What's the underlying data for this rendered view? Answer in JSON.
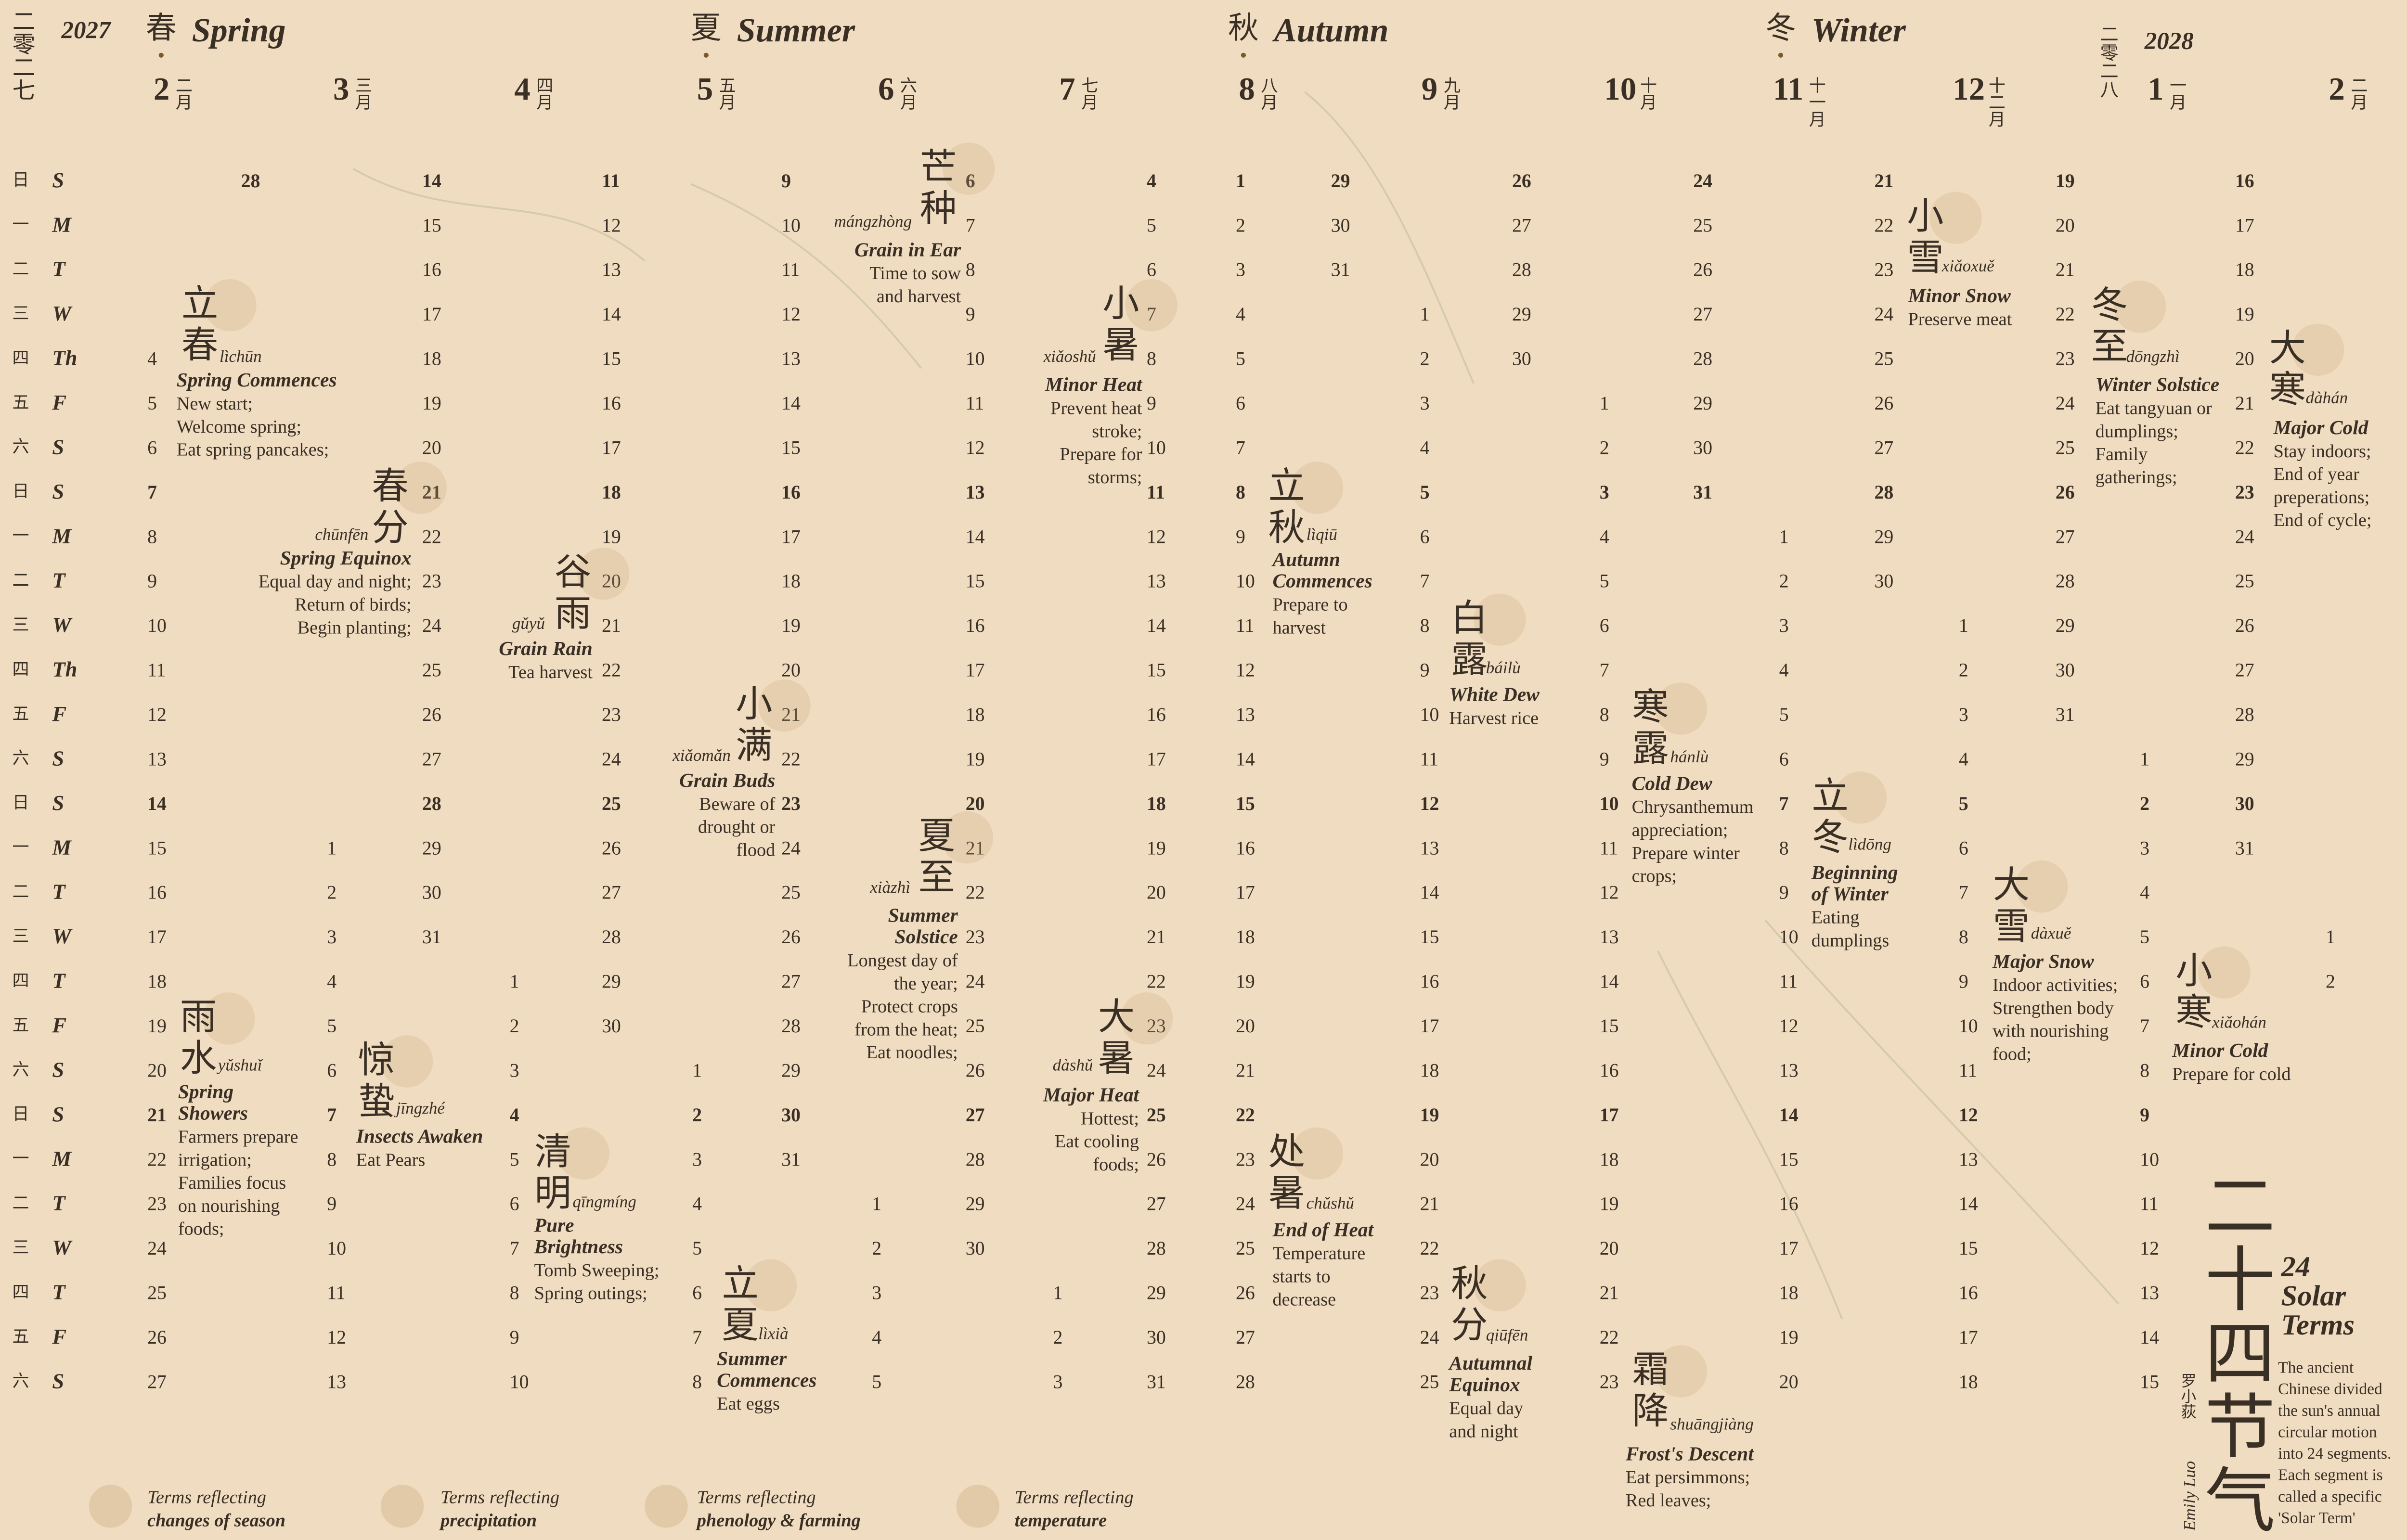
{
  "header": {
    "year_start_cn": "二零二七",
    "year_start": "2027",
    "year_end_cn": "二零二八",
    "year_end": "2028"
  },
  "seasons": [
    {
      "cn": "春",
      "en": "Spring"
    },
    {
      "cn": "夏",
      "en": "Summer"
    },
    {
      "cn": "秋",
      "en": "Autumn"
    },
    {
      "cn": "冬",
      "en": "Winter"
    }
  ],
  "months": [
    {
      "number": 2,
      "cn": "二月"
    },
    {
      "number": 3,
      "cn": "三月"
    },
    {
      "number": 4,
      "cn": "四月"
    },
    {
      "number": 5,
      "cn": "五月"
    },
    {
      "number": 6,
      "cn": "六月"
    },
    {
      "number": 7,
      "cn": "七月"
    },
    {
      "number": 8,
      "cn": "八月"
    },
    {
      "number": 9,
      "cn": "九月"
    },
    {
      "number": 10,
      "cn": "十月"
    },
    {
      "number": 11,
      "cn": "十一月"
    },
    {
      "number": 12,
      "cn": "十二月"
    },
    {
      "number": 1,
      "cn": "一月"
    },
    {
      "number": 2,
      "cn": "二月"
    }
  ],
  "weekdays": [
    {
      "cn": "日",
      "en": "S"
    },
    {
      "cn": "一",
      "en": "M"
    },
    {
      "cn": "二",
      "en": "T"
    },
    {
      "cn": "三",
      "en": "W"
    },
    {
      "cn": "四",
      "en": "Th"
    },
    {
      "cn": "五",
      "en": "F"
    },
    {
      "cn": "六",
      "en": "S"
    },
    {
      "cn": "日",
      "en": "S"
    },
    {
      "cn": "一",
      "en": "M"
    },
    {
      "cn": "二",
      "en": "T"
    },
    {
      "cn": "三",
      "en": "W"
    },
    {
      "cn": "四",
      "en": "Th"
    },
    {
      "cn": "五",
      "en": "F"
    },
    {
      "cn": "六",
      "en": "S"
    },
    {
      "cn": "日",
      "en": "S"
    },
    {
      "cn": "一",
      "en": "M"
    },
    {
      "cn": "二",
      "en": "T"
    },
    {
      "cn": "三",
      "en": "W"
    },
    {
      "cn": "四",
      "en": "T"
    },
    {
      "cn": "五",
      "en": "F"
    },
    {
      "cn": "六",
      "en": "S"
    },
    {
      "cn": "日",
      "en": "S"
    },
    {
      "cn": "一",
      "en": "M"
    },
    {
      "cn": "二",
      "en": "T"
    },
    {
      "cn": "三",
      "en": "W"
    },
    {
      "cn": "四",
      "en": "T"
    },
    {
      "cn": "五",
      "en": "F"
    },
    {
      "cn": "六",
      "en": "S"
    }
  ],
  "day_columns": [
    [
      null,
      null,
      null,
      null,
      4,
      5,
      6,
      7,
      8,
      9,
      10,
      11,
      12,
      13,
      14,
      15,
      16,
      17,
      18,
      19,
      20,
      21,
      22,
      23,
      24,
      25,
      26,
      27
    ],
    [
      28,
      null,
      null,
      null,
      null,
      null,
      null,
      null,
      null,
      null,
      null,
      null,
      null,
      null,
      null,
      null,
      null,
      null,
      null,
      null,
      null,
      null,
      null,
      null,
      null,
      null,
      null,
      null
    ],
    [
      null,
      null,
      null,
      null,
      null,
      null,
      null,
      null,
      null,
      null,
      null,
      null,
      null,
      null,
      null,
      1,
      2,
      3,
      4,
      5,
      6,
      7,
      8,
      9,
      10,
      11,
      12,
      13
    ],
    [
      14,
      15,
      16,
      17,
      18,
      19,
      20,
      21,
      22,
      23,
      24,
      25,
      26,
      27,
      28,
      29,
      30,
      31,
      null,
      null,
      null,
      null,
      null,
      null,
      null,
      null,
      null,
      null
    ],
    [
      null,
      null,
      null,
      null,
      null,
      null,
      null,
      null,
      null,
      null,
      null,
      null,
      null,
      null,
      null,
      null,
      null,
      null,
      1,
      2,
      3,
      4,
      5,
      6,
      7,
      8,
      9,
      10
    ],
    [
      11,
      12,
      13,
      14,
      15,
      16,
      17,
      18,
      19,
      20,
      21,
      22,
      23,
      24,
      25,
      26,
      27,
      28,
      29,
      30,
      null,
      null,
      null,
      null,
      null,
      null,
      null,
      null
    ],
    [
      null,
      null,
      null,
      null,
      null,
      null,
      null,
      null,
      null,
      null,
      null,
      null,
      null,
      null,
      null,
      null,
      null,
      null,
      null,
      null,
      1,
      2,
      3,
      4,
      5,
      6,
      7,
      8
    ],
    [
      9,
      10,
      11,
      12,
      13,
      14,
      15,
      16,
      17,
      18,
      19,
      20,
      21,
      22,
      23,
      24,
      25,
      26,
      27,
      28,
      29,
      30,
      31,
      null,
      null,
      null,
      null,
      null
    ],
    [
      null,
      null,
      null,
      null,
      null,
      null,
      null,
      null,
      null,
      null,
      null,
      null,
      null,
      null,
      null,
      null,
      null,
      null,
      null,
      null,
      null,
      null,
      null,
      1,
      2,
      3,
      4,
      5
    ],
    [
      6,
      7,
      8,
      9,
      10,
      11,
      12,
      13,
      14,
      15,
      16,
      17,
      18,
      19,
      20,
      21,
      22,
      23,
      24,
      25,
      26,
      27,
      28,
      29,
      30,
      null,
      null,
      null
    ],
    [
      null,
      null,
      null,
      null,
      null,
      null,
      null,
      null,
      null,
      null,
      null,
      null,
      null,
      null,
      null,
      null,
      null,
      null,
      null,
      null,
      null,
      null,
      null,
      null,
      null,
      1,
      2,
      3
    ],
    [
      4,
      5,
      6,
      7,
      8,
      9,
      10,
      11,
      12,
      13,
      14,
      15,
      16,
      17,
      18,
      19,
      20,
      21,
      22,
      23,
      24,
      25,
      26,
      27,
      28,
      29,
      30,
      31
    ],
    [
      1,
      2,
      3,
      4,
      5,
      6,
      7,
      8,
      9,
      10,
      11,
      12,
      13,
      14,
      15,
      16,
      17,
      18,
      19,
      20,
      21,
      22,
      23,
      24,
      25,
      26,
      27,
      28
    ],
    [
      29,
      30,
      31,
      null,
      null,
      null,
      null,
      null,
      null,
      null,
      null,
      null,
      null,
      null,
      null,
      null,
      null,
      null,
      null,
      null,
      null,
      null,
      null,
      null,
      null,
      null,
      null,
      null
    ],
    [
      null,
      null,
      null,
      1,
      2,
      3,
      4,
      5,
      6,
      7,
      8,
      9,
      10,
      11,
      12,
      13,
      14,
      15,
      16,
      17,
      18,
      19,
      20,
      21,
      22,
      23,
      24,
      25
    ],
    [
      26,
      27,
      28,
      29,
      30,
      null,
      null,
      null,
      null,
      null,
      null,
      null,
      null,
      null,
      null,
      null,
      null,
      null,
      null,
      null,
      null,
      null,
      null,
      null,
      null,
      null,
      null,
      null
    ],
    [
      null,
      null,
      null,
      null,
      null,
      1,
      2,
      3,
      4,
      5,
      6,
      7,
      8,
      9,
      10,
      11,
      12,
      13,
      14,
      15,
      16,
      17,
      18,
      19,
      20,
      21,
      22,
      23
    ],
    [
      24,
      25,
      26,
      27,
      28,
      29,
      30,
      31,
      null,
      null,
      null,
      null,
      null,
      null,
      null,
      null,
      null,
      null,
      null,
      null,
      null,
      null,
      null,
      null,
      null,
      null,
      null,
      null
    ],
    [
      null,
      null,
      null,
      null,
      null,
      null,
      null,
      null,
      1,
      2,
      3,
      4,
      5,
      6,
      7,
      8,
      9,
      10,
      11,
      12,
      13,
      14,
      15,
      16,
      17,
      18,
      19,
      20
    ],
    [
      21,
      22,
      23,
      24,
      25,
      26,
      27,
      28,
      29,
      30,
      null,
      null,
      null,
      null,
      null,
      null,
      null,
      null,
      null,
      null,
      null,
      null,
      null,
      null,
      null,
      null,
      null,
      null
    ],
    [
      null,
      null,
      null,
      null,
      null,
      null,
      null,
      null,
      null,
      null,
      1,
      2,
      3,
      4,
      5,
      6,
      7,
      8,
      9,
      10,
      11,
      12,
      13,
      14,
      15,
      16,
      17,
      18
    ],
    [
      19,
      20,
      21,
      22,
      23,
      24,
      25,
      26,
      27,
      28,
      29,
      30,
      31,
      null,
      null,
      null,
      null,
      null,
      null,
      null,
      null,
      null,
      null,
      null,
      null,
      null,
      null,
      null
    ],
    [
      null,
      null,
      null,
      null,
      null,
      null,
      null,
      null,
      null,
      null,
      null,
      null,
      null,
      1,
      2,
      3,
      4,
      5,
      6,
      7,
      8,
      9,
      10,
      11,
      12,
      13,
      14,
      15
    ],
    [
      16,
      17,
      18,
      19,
      20,
      21,
      22,
      23,
      24,
      25,
      26,
      27,
      28,
      29,
      30,
      31,
      null,
      null,
      null,
      null,
      null,
      null,
      null,
      null,
      null,
      null,
      null,
      null
    ],
    [
      null,
      null,
      null,
      null,
      null,
      null,
      null,
      null,
      null,
      null,
      null,
      null,
      null,
      null,
      null,
      null,
      null,
      1,
      2,
      null,
      null,
      null,
      null,
      null,
      null,
      null,
      null,
      null
    ]
  ],
  "solar_terms": [
    {
      "cn": "立春",
      "pinyin": "lìchūn",
      "name": [
        "Spring Commences"
      ],
      "notes": [
        "New start;",
        "Welcome spring;",
        "Eat spring pancakes;"
      ]
    },
    {
      "cn": "雨水",
      "pinyin": "yǔshuǐ",
      "name": [
        "Spring",
        "Showers"
      ],
      "notes": [
        "Farmers prepare",
        "irrigation;",
        "Families focus",
        "on nourishing",
        "foods;"
      ]
    },
    {
      "cn": "惊蛰",
      "pinyin": "jīngzhé",
      "name": [
        "Insects Awaken"
      ],
      "notes": [
        "Eat Pears"
      ]
    },
    {
      "cn": "春分",
      "pinyin": "chūnfēn",
      "name": [
        "Spring Equinox"
      ],
      "notes": [
        "Equal day and night;",
        "Return of birds;",
        "Begin planting;"
      ]
    },
    {
      "cn": "清明",
      "pinyin": "qīngmíng",
      "name": [
        "Pure",
        "Brightness"
      ],
      "notes": [
        "Tomb Sweeping;",
        "Spring outings;"
      ]
    },
    {
      "cn": "谷雨",
      "pinyin": "gǔyǔ",
      "name": [
        "Grain Rain"
      ],
      "notes": [
        "Tea harvest"
      ]
    },
    {
      "cn": "立夏",
      "pinyin": "lìxià",
      "name": [
        "Summer",
        "Commences"
      ],
      "notes": [
        "Eat eggs"
      ]
    },
    {
      "cn": "小满",
      "pinyin": "xiǎomǎn",
      "name": [
        "Grain Buds"
      ],
      "notes": [
        "Beware of",
        "drought or",
        "flood"
      ]
    },
    {
      "cn": "芒种",
      "pinyin": "mángzhòng",
      "name": [
        "Grain in Ear"
      ],
      "notes": [
        "Time to sow",
        "and harvest"
      ]
    },
    {
      "cn": "夏至",
      "pinyin": "xiàzhì",
      "name": [
        "Summer",
        "Solstice"
      ],
      "notes": [
        "Longest day of",
        "the year;",
        "Protect crops",
        "from the heat;",
        "Eat noodles;"
      ]
    },
    {
      "cn": "小暑",
      "pinyin": "xiǎoshǔ",
      "name": [
        "Minor Heat"
      ],
      "notes": [
        "Prevent heat",
        "stroke;",
        "Prepare for",
        "storms;"
      ]
    },
    {
      "cn": "大暑",
      "pinyin": "dàshǔ",
      "name": [
        "Major Heat"
      ],
      "notes": [
        "Hottest;",
        "Eat cooling",
        "foods;"
      ]
    },
    {
      "cn": "立秋",
      "pinyin": "lìqiū",
      "name": [
        "Autumn",
        "Commences"
      ],
      "notes": [
        "Prepare to",
        "harvest"
      ]
    },
    {
      "cn": "处暑",
      "pinyin": "chǔshǔ",
      "name": [
        "End of Heat"
      ],
      "notes": [
        "Temperature",
        "starts to",
        "decrease"
      ]
    },
    {
      "cn": "白露",
      "pinyin": "báilù",
      "name": [
        "White Dew"
      ],
      "notes": [
        "Harvest rice"
      ]
    },
    {
      "cn": "秋分",
      "pinyin": "qiūfēn",
      "name": [
        "Autumnal",
        "Equinox"
      ],
      "notes": [
        "Equal day",
        "and night"
      ]
    },
    {
      "cn": "寒露",
      "pinyin": "hánlù",
      "name": [
        "Cold Dew"
      ],
      "notes": [
        "Chrysanthemum",
        "appreciation;",
        "Prepare winter",
        "crops;"
      ]
    },
    {
      "cn": "霜降",
      "pinyin": "shuāngjiàng",
      "name": [
        "Frost's Descent"
      ],
      "notes": [
        "Eat persimmons;",
        "Red leaves;"
      ]
    },
    {
      "cn": "立冬",
      "pinyin": "lìdōng",
      "name": [
        "Beginning",
        "of Winter"
      ],
      "notes": [
        "Eating",
        "dumplings"
      ]
    },
    {
      "cn": "小雪",
      "pinyin": "xiǎoxuě",
      "name": [
        "Minor Snow"
      ],
      "notes": [
        "Preserve meat"
      ]
    },
    {
      "cn": "大雪",
      "pinyin": "dàxuě",
      "name": [
        "Major Snow"
      ],
      "notes": [
        "Indoor activities;",
        "Strengthen body",
        "with nourishing",
        "food;"
      ]
    },
    {
      "cn": "冬至",
      "pinyin": "dōngzhì",
      "name": [
        "Winter Solstice"
      ],
      "notes": [
        "Eat tangyuan or",
        "dumplings;",
        "Family",
        "gatherings;"
      ]
    },
    {
      "cn": "小寒",
      "pinyin": "xiǎohán",
      "name": [
        "Minor Cold"
      ],
      "notes": [
        "Prepare for cold"
      ]
    },
    {
      "cn": "大寒",
      "pinyin": "dàhán",
      "name": [
        "Major Cold"
      ],
      "notes": [
        "Stay indoors;",
        "End of year",
        "preperations;",
        "End of cycle;"
      ]
    }
  ],
  "legend": [
    {
      "text": "Terms reflecting",
      "category": "changes of season"
    },
    {
      "text": "Terms reflecting",
      "category": "precipitation"
    },
    {
      "text": "Terms reflecting",
      "category": "phenology & farming"
    },
    {
      "text": "Terms reflecting",
      "category": "temperature"
    }
  ],
  "title": {
    "cn": "二十四节气",
    "en": [
      "24",
      "Solar",
      "Terms"
    ],
    "description": [
      "The ancient",
      "Chinese divided",
      "the sun's annual",
      "circular motion",
      "into 24 segments.",
      "Each segment is",
      "called a specific",
      "'Solar Term'"
    ],
    "author": "Emily Luo",
    "author_cn": "罗小荻"
  }
}
